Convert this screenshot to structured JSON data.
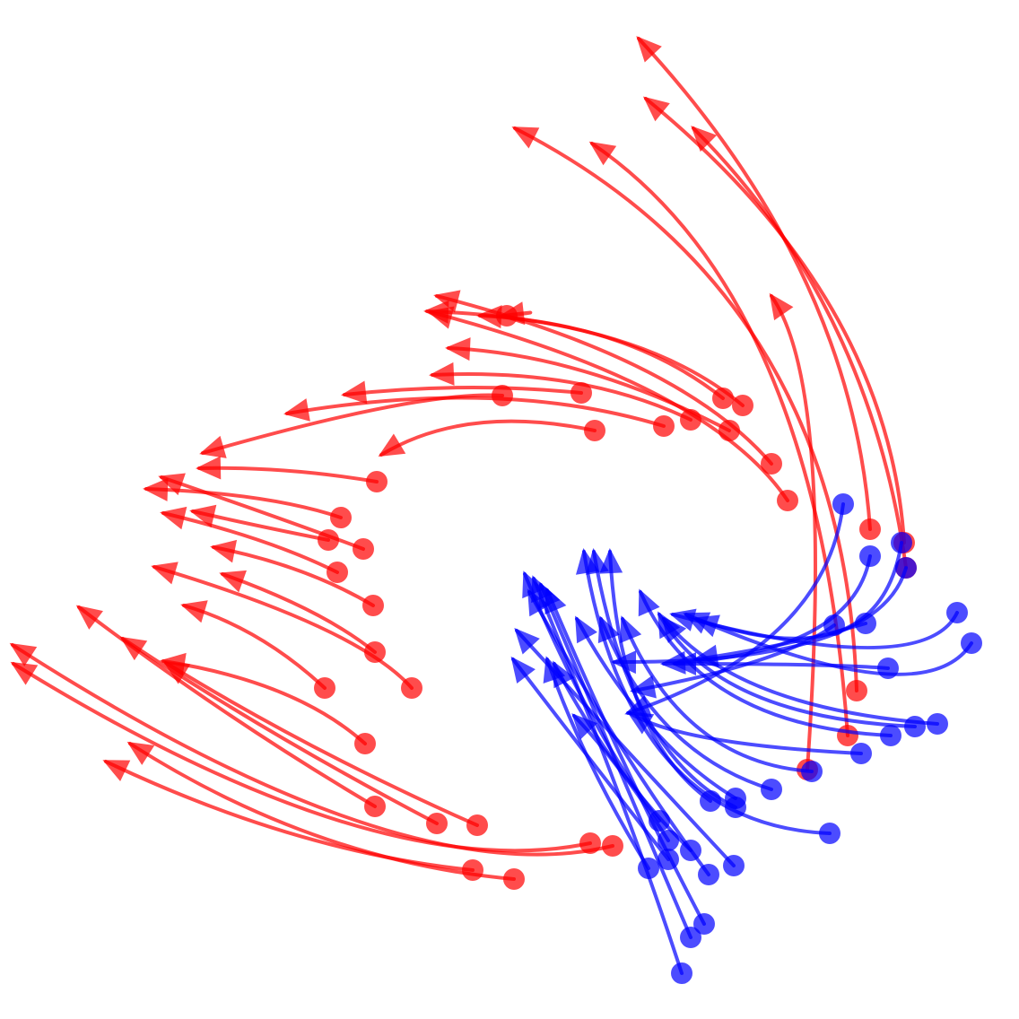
{
  "colors": {
    "red": "#ff0000",
    "blue": "#0000ff",
    "background": "#ffffff"
  },
  "trajectories": {
    "red": [
      [
        [
          878,
          558
        ],
        [
          792,
          430
        ],
        [
          480,
          348
        ]
      ],
      [
        [
          860,
          517
        ],
        [
          760,
          400
        ],
        [
          487,
          330
        ]
      ],
      [
        [
          828,
          452
        ],
        [
          712,
          355
        ],
        [
          476,
          347
        ]
      ],
      [
        [
          806,
          444
        ],
        [
          700,
          360
        ],
        [
          535,
          352
        ]
      ],
      [
        [
          813,
          480
        ],
        [
          650,
          395
        ],
        [
          500,
          388
        ]
      ],
      [
        [
          770,
          468
        ],
        [
          650,
          410
        ],
        [
          482,
          418
        ]
      ],
      [
        [
          740,
          475
        ],
        [
          560,
          420
        ],
        [
          320,
          461
        ]
      ],
      [
        [
          663,
          480
        ],
        [
          520,
          450
        ],
        [
          425,
          507
        ]
      ],
      [
        [
          648,
          438
        ],
        [
          520,
          425
        ],
        [
          384,
          440
        ]
      ],
      [
        [
          560,
          441
        ],
        [
          470,
          435
        ],
        [
          226,
          505
        ]
      ],
      [
        [
          565,
          352
        ],
        [
          620,
          345
        ],
        [
          560,
          352
        ]
      ],
      [
        [
          420,
          537
        ],
        [
          320,
          520
        ],
        [
          222,
          522
        ]
      ],
      [
        [
          380,
          577
        ],
        [
          300,
          550
        ],
        [
          163,
          545
        ]
      ],
      [
        [
          405,
          612
        ],
        [
          320,
          580
        ],
        [
          180,
          532
        ]
      ],
      [
        [
          376,
          638
        ],
        [
          300,
          600
        ],
        [
          182,
          572
        ]
      ],
      [
        [
          366,
          602
        ],
        [
          280,
          585
        ],
        [
          215,
          570
        ]
      ],
      [
        [
          416,
          675
        ],
        [
          340,
          630
        ],
        [
          238,
          610
        ]
      ],
      [
        [
          418,
          727
        ],
        [
          360,
          680
        ],
        [
          248,
          640
        ]
      ],
      [
        [
          459,
          767
        ],
        [
          400,
          700
        ],
        [
          172,
          632
        ]
      ],
      [
        [
          362,
          767
        ],
        [
          290,
          700
        ],
        [
          205,
          675
        ]
      ],
      [
        [
          407,
          829
        ],
        [
          330,
          760
        ],
        [
          182,
          737
        ]
      ],
      [
        [
          418,
          899
        ],
        [
          250,
          800
        ],
        [
          88,
          677
        ]
      ],
      [
        [
          487,
          918
        ],
        [
          300,
          820
        ],
        [
          137,
          712
        ]
      ],
      [
        [
          532,
          920
        ],
        [
          350,
          840
        ],
        [
          185,
          739
        ]
      ],
      [
        [
          683,
          943
        ],
        [
          450,
          1000
        ],
        [
          14,
          719
        ]
      ],
      [
        [
          658,
          940
        ],
        [
          420,
          990
        ],
        [
          15,
          740
        ]
      ],
      [
        [
          573,
          980
        ],
        [
          350,
          960
        ],
        [
          145,
          829
        ]
      ],
      [
        [
          527,
          970
        ],
        [
          330,
          950
        ],
        [
          118,
          849
        ]
      ],
      [
        [
          970,
          590
        ],
        [
          950,
          300
        ],
        [
          712,
          43
        ]
      ],
      [
        [
          1008,
          605
        ],
        [
          990,
          330
        ],
        [
          720,
          110
        ]
      ],
      [
        [
          1010,
          633
        ],
        [
          970,
          340
        ],
        [
          773,
          143
        ]
      ],
      [
        [
          955,
          770
        ],
        [
          940,
          330
        ],
        [
          574,
          143
        ]
      ],
      [
        [
          945,
          820
        ],
        [
          910,
          330
        ],
        [
          660,
          160
        ]
      ],
      [
        [
          900,
          858
        ],
        [
          930,
          430
        ],
        [
          860,
          330
        ]
      ]
    ],
    "blue": [
      [
        [
          760,
          1085
        ],
        [
          700,
          900
        ],
        [
          595,
          645
        ]
      ],
      [
        [
          770,
          1045
        ],
        [
          700,
          880
        ],
        [
          603,
          652
        ]
      ],
      [
        [
          785,
          1030
        ],
        [
          700,
          870
        ],
        [
          610,
          658
        ]
      ],
      [
        [
          790,
          975
        ],
        [
          690,
          840
        ],
        [
          590,
          660
        ]
      ],
      [
        [
          818,
          965
        ],
        [
          720,
          860
        ],
        [
          576,
          703
        ]
      ],
      [
        [
          745,
          958
        ],
        [
          660,
          850
        ],
        [
          572,
          735
        ]
      ],
      [
        [
          723,
          968
        ],
        [
          650,
          850
        ],
        [
          610,
          735
        ]
      ],
      [
        [
          770,
          948
        ],
        [
          680,
          860
        ],
        [
          618,
          740
        ]
      ],
      [
        [
          745,
          937
        ],
        [
          690,
          850
        ],
        [
          640,
          798
        ]
      ],
      [
        [
          735,
          915
        ],
        [
          660,
          820
        ],
        [
          585,
          640
        ]
      ],
      [
        [
          925,
          929
        ],
        [
          700,
          920
        ],
        [
          651,
          615
        ]
      ],
      [
        [
          820,
          900
        ],
        [
          700,
          840
        ],
        [
          662,
          615
        ]
      ],
      [
        [
          792,
          893
        ],
        [
          690,
          820
        ],
        [
          680,
          615
        ]
      ],
      [
        [
          820,
          890
        ],
        [
          720,
          830
        ],
        [
          643,
          690
        ]
      ],
      [
        [
          860,
          880
        ],
        [
          730,
          840
        ],
        [
          670,
          690
        ]
      ],
      [
        [
          905,
          860
        ],
        [
          760,
          850
        ],
        [
          694,
          690
        ]
      ],
      [
        [
          960,
          840
        ],
        [
          760,
          830
        ],
        [
          702,
          795
        ]
      ],
      [
        [
          993,
          820
        ],
        [
          780,
          810
        ],
        [
          714,
          660
        ]
      ],
      [
        [
          1020,
          810
        ],
        [
          800,
          800
        ],
        [
          735,
          685
        ]
      ],
      [
        [
          1045,
          807
        ],
        [
          820,
          790
        ],
        [
          740,
          690
        ]
      ],
      [
        [
          1067,
          683
        ],
        [
          1030,
          760
        ],
        [
          750,
          685
        ]
      ],
      [
        [
          1083,
          717
        ],
        [
          1030,
          800
        ],
        [
          765,
          685
        ]
      ],
      [
        [
          1005,
          605
        ],
        [
          980,
          760
        ],
        [
          776,
          690
        ]
      ],
      [
        [
          1010,
          633
        ],
        [
          980,
          740
        ],
        [
          685,
          738
        ]
      ],
      [
        [
          970,
          620
        ],
        [
          950,
          730
        ],
        [
          740,
          740
        ]
      ],
      [
        [
          990,
          745
        ],
        [
          930,
          740
        ],
        [
          752,
          740
        ]
      ],
      [
        [
          965,
          695
        ],
        [
          880,
          720
        ],
        [
          776,
          735
        ]
      ],
      [
        [
          930,
          697
        ],
        [
          870,
          740
        ],
        [
          706,
          770
        ]
      ],
      [
        [
          940,
          562
        ],
        [
          920,
          720
        ],
        [
          700,
          795
        ]
      ]
    ]
  }
}
